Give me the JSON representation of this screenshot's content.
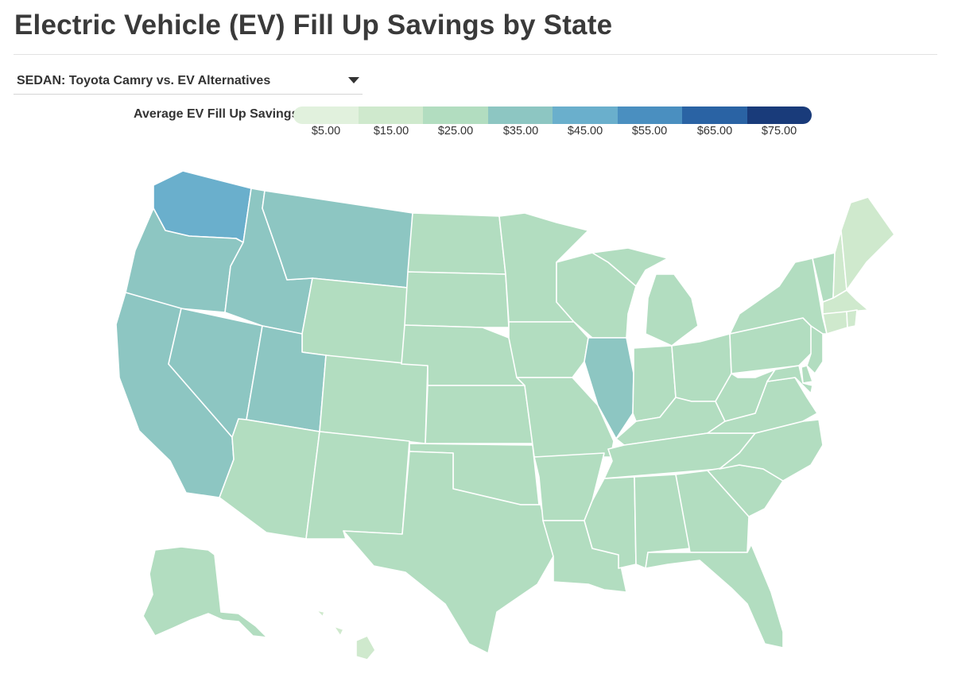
{
  "title": "Electric Vehicle (EV) Fill Up Savings by State",
  "selector": {
    "selected": "SEDAN: Toyota Camry vs. EV Alternatives"
  },
  "legend": {
    "title": "Average EV Fill Up Savings",
    "bins": [
      {
        "label": "$5.00",
        "color": "#e1f1dd"
      },
      {
        "label": "$15.00",
        "color": "#cfe9cd"
      },
      {
        "label": "$25.00",
        "color": "#b2ddc0"
      },
      {
        "label": "$35.00",
        "color": "#8dc6c2"
      },
      {
        "label": "$45.00",
        "color": "#6aafcc"
      },
      {
        "label": "$55.00",
        "color": "#4a8fc0"
      },
      {
        "label": "$65.00",
        "color": "#2a63a4"
      },
      {
        "label": "$75.00",
        "color": "#193b7a"
      }
    ]
  },
  "map": {
    "states": [
      {
        "id": "WA",
        "bin": 4
      },
      {
        "id": "OR",
        "bin": 3
      },
      {
        "id": "CA",
        "bin": 3
      },
      {
        "id": "NV",
        "bin": 3
      },
      {
        "id": "ID",
        "bin": 3
      },
      {
        "id": "MT",
        "bin": 3
      },
      {
        "id": "UT",
        "bin": 3
      },
      {
        "id": "IL",
        "bin": 3
      },
      {
        "id": "WY",
        "bin": 2
      },
      {
        "id": "CO",
        "bin": 2
      },
      {
        "id": "AZ",
        "bin": 2
      },
      {
        "id": "NM",
        "bin": 2
      },
      {
        "id": "ND",
        "bin": 2
      },
      {
        "id": "SD",
        "bin": 2
      },
      {
        "id": "NE",
        "bin": 2
      },
      {
        "id": "KS",
        "bin": 2
      },
      {
        "id": "OK",
        "bin": 2
      },
      {
        "id": "TX",
        "bin": 2
      },
      {
        "id": "MN",
        "bin": 2
      },
      {
        "id": "IA",
        "bin": 2
      },
      {
        "id": "MO",
        "bin": 2
      },
      {
        "id": "AR",
        "bin": 2
      },
      {
        "id": "LA",
        "bin": 2
      },
      {
        "id": "WI",
        "bin": 2
      },
      {
        "id": "MI",
        "bin": 2
      },
      {
        "id": "IN",
        "bin": 2
      },
      {
        "id": "OH",
        "bin": 2
      },
      {
        "id": "KY",
        "bin": 2
      },
      {
        "id": "TN",
        "bin": 2
      },
      {
        "id": "MS",
        "bin": 2
      },
      {
        "id": "AL",
        "bin": 2
      },
      {
        "id": "GA",
        "bin": 2
      },
      {
        "id": "FL",
        "bin": 2
      },
      {
        "id": "SC",
        "bin": 2
      },
      {
        "id": "NC",
        "bin": 2
      },
      {
        "id": "VA",
        "bin": 2
      },
      {
        "id": "WV",
        "bin": 2
      },
      {
        "id": "PA",
        "bin": 2
      },
      {
        "id": "NY",
        "bin": 2
      },
      {
        "id": "NJ",
        "bin": 2
      },
      {
        "id": "DE",
        "bin": 2
      },
      {
        "id": "MD",
        "bin": 2
      },
      {
        "id": "VT",
        "bin": 2
      },
      {
        "id": "AK",
        "bin": 2
      },
      {
        "id": "HI",
        "bin": 1
      },
      {
        "id": "ME",
        "bin": 1
      },
      {
        "id": "NH",
        "bin": 1
      },
      {
        "id": "MA",
        "bin": 1
      },
      {
        "id": "RI",
        "bin": 1
      },
      {
        "id": "CT",
        "bin": 1
      }
    ]
  }
}
